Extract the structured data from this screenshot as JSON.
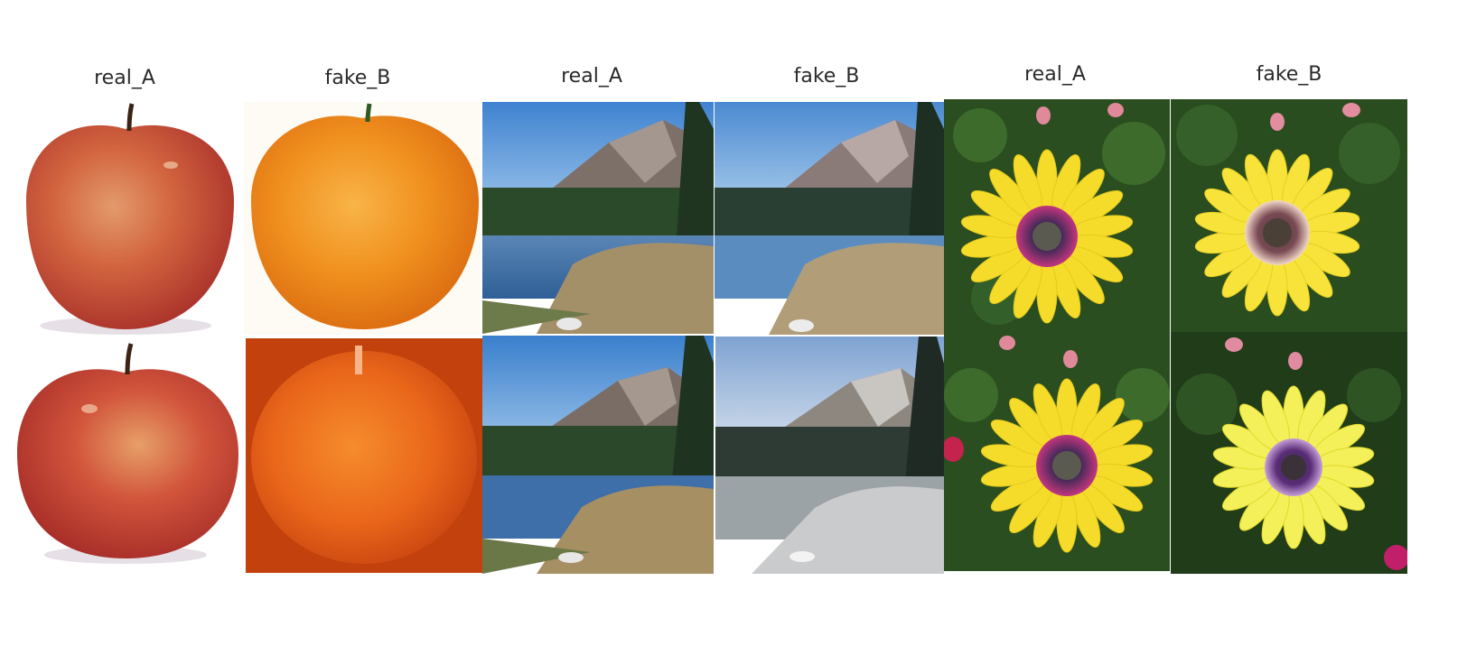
{
  "columns": [
    {
      "label": "real_A"
    },
    {
      "label": "fake_B"
    },
    {
      "label": "real_A"
    },
    {
      "label": "fake_B"
    },
    {
      "label": "real_A"
    },
    {
      "label": "fake_B"
    }
  ],
  "groups": [
    {
      "subject": "apple-to-orange"
    },
    {
      "subject": "landscape"
    },
    {
      "subject": "flower"
    }
  ],
  "colors": {
    "apple_red": "#c8473a",
    "orange": "#ee8a1c",
    "sky": "#4d8fd6",
    "mountain": "#6e6460",
    "flower_yellow": "#f6dc2a",
    "leaf_green": "#2f5a22"
  }
}
